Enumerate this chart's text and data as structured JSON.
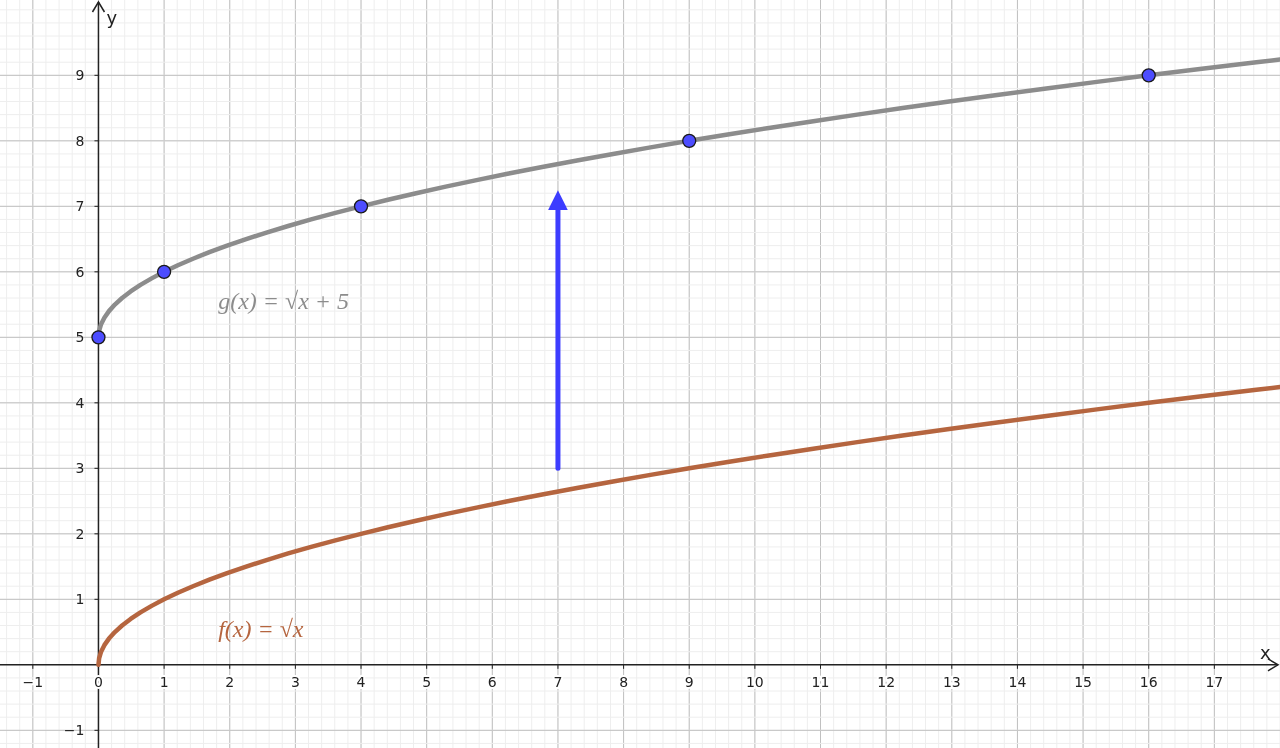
{
  "chart_data": {
    "type": "line",
    "xlabel": "x",
    "ylabel": "y",
    "xlim": [
      -1.5,
      18
    ],
    "ylim": [
      -1.27,
      10.15
    ],
    "xticks": [
      {
        "value": -1,
        "label": "−1"
      },
      0,
      1,
      2,
      3,
      4,
      5,
      6,
      7,
      8,
      9,
      10,
      11,
      12,
      13,
      14,
      15,
      16,
      17
    ],
    "yticks": [
      {
        "value": -1,
        "label": "−1"
      },
      1,
      2,
      3,
      4,
      5,
      6,
      7,
      8,
      9
    ],
    "grid": true,
    "series": [
      {
        "name": "f(x) = √x",
        "color": "#b5653f",
        "x": [
          0,
          0.01,
          0.04,
          0.09,
          0.16,
          0.25,
          0.36,
          0.49,
          0.64,
          0.81,
          1,
          1.21,
          1.44,
          1.69,
          1.96,
          2.25,
          2.56,
          2.89,
          3.24,
          3.61,
          4,
          4.41,
          4.84,
          5.29,
          5.76,
          6.25,
          6.76,
          7.29,
          7.84,
          8.41,
          9,
          9.61,
          10.24,
          10.89,
          11.56,
          12.25,
          12.96,
          13.69,
          14.44,
          15.21,
          16,
          16.81,
          17.64,
          18
        ],
        "values": [
          0,
          0.1,
          0.2,
          0.3,
          0.4,
          0.5,
          0.6,
          0.7,
          0.8,
          0.9,
          1,
          1.1,
          1.2,
          1.3,
          1.4,
          1.5,
          1.6,
          1.7,
          1.8,
          1.9,
          2,
          2.1,
          2.2,
          2.3,
          2.4,
          2.5,
          2.6,
          2.7,
          2.8,
          2.9,
          3,
          3.1,
          3.2,
          3.3,
          3.4,
          3.5,
          3.6,
          3.7,
          3.8,
          3.9,
          4,
          4.1,
          4.2,
          4.24
        ]
      },
      {
        "name": "g(x) = √x + 5",
        "color": "#8c8c8c",
        "x": [
          0,
          0.01,
          0.04,
          0.09,
          0.16,
          0.25,
          0.36,
          0.49,
          0.64,
          0.81,
          1,
          1.21,
          1.44,
          1.69,
          1.96,
          2.25,
          2.56,
          2.89,
          3.24,
          3.61,
          4,
          4.41,
          4.84,
          5.29,
          5.76,
          6.25,
          6.76,
          7.29,
          7.84,
          8.41,
          9,
          9.61,
          10.24,
          10.89,
          11.56,
          12.25,
          12.96,
          13.69,
          14.44,
          15.21,
          16,
          16.81,
          17.64,
          18
        ],
        "values": [
          5,
          5.1,
          5.2,
          5.3,
          5.4,
          5.5,
          5.6,
          5.7,
          5.8,
          5.9,
          6,
          6.1,
          6.2,
          6.3,
          6.4,
          6.5,
          6.6,
          6.7,
          6.8,
          6.9,
          7,
          7.1,
          7.2,
          7.3,
          7.4,
          7.5,
          7.6,
          7.7,
          7.8,
          7.9,
          8,
          8.1,
          8.2,
          8.3,
          8.4,
          8.5,
          8.6,
          8.7,
          8.8,
          8.9,
          9,
          9.1,
          9.2,
          9.24
        ]
      },
      {
        "type": "scatter",
        "color": "#4d4dff",
        "marker": "circle",
        "x": [
          0,
          1,
          4,
          9,
          16
        ],
        "values": [
          5,
          6,
          7,
          8,
          9
        ]
      },
      {
        "color": "#3d3dff",
        "x": [
          7,
          7
        ],
        "values": [
          3,
          7
        ]
      }
    ]
  }
}
